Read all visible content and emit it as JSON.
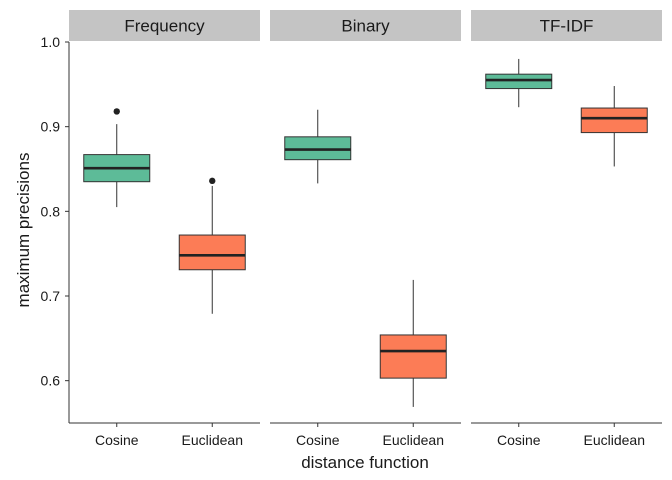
{
  "chart_data": {
    "type": "boxplot",
    "xlabel": "distance function",
    "ylabel": "maximum precisions",
    "ylim": [
      0.55,
      1.0
    ],
    "yticks": [
      "0.6",
      "0.7",
      "0.8",
      "0.9",
      "1.0"
    ],
    "categories": [
      "Cosine",
      "Euclidean"
    ],
    "colors": {
      "Cosine": "#5dbb98",
      "Euclidean": "#fc7c56",
      "strip": "#c4c4c4"
    },
    "grid": false,
    "legend": "none",
    "panels": [
      {
        "label": "Frequency",
        "boxes": [
          {
            "category": "Cosine",
            "min": 0.805,
            "q1": 0.835,
            "median": 0.851,
            "q3": 0.867,
            "max": 0.903,
            "outliers": [
              0.918
            ]
          },
          {
            "category": "Euclidean",
            "min": 0.679,
            "q1": 0.731,
            "median": 0.748,
            "q3": 0.772,
            "max": 0.83,
            "outliers": [
              0.836
            ]
          }
        ]
      },
      {
        "label": "Binary",
        "boxes": [
          {
            "category": "Cosine",
            "min": 0.833,
            "q1": 0.861,
            "median": 0.873,
            "q3": 0.888,
            "max": 0.92,
            "outliers": []
          },
          {
            "category": "Euclidean",
            "min": 0.569,
            "q1": 0.603,
            "median": 0.635,
            "q3": 0.654,
            "max": 0.719,
            "outliers": []
          }
        ]
      },
      {
        "label": "TF-IDF",
        "boxes": [
          {
            "category": "Cosine",
            "min": 0.923,
            "q1": 0.945,
            "median": 0.955,
            "q3": 0.962,
            "max": 0.98,
            "outliers": []
          },
          {
            "category": "Euclidean",
            "min": 0.853,
            "q1": 0.893,
            "median": 0.91,
            "q3": 0.922,
            "max": 0.948,
            "outliers": []
          }
        ]
      }
    ]
  }
}
